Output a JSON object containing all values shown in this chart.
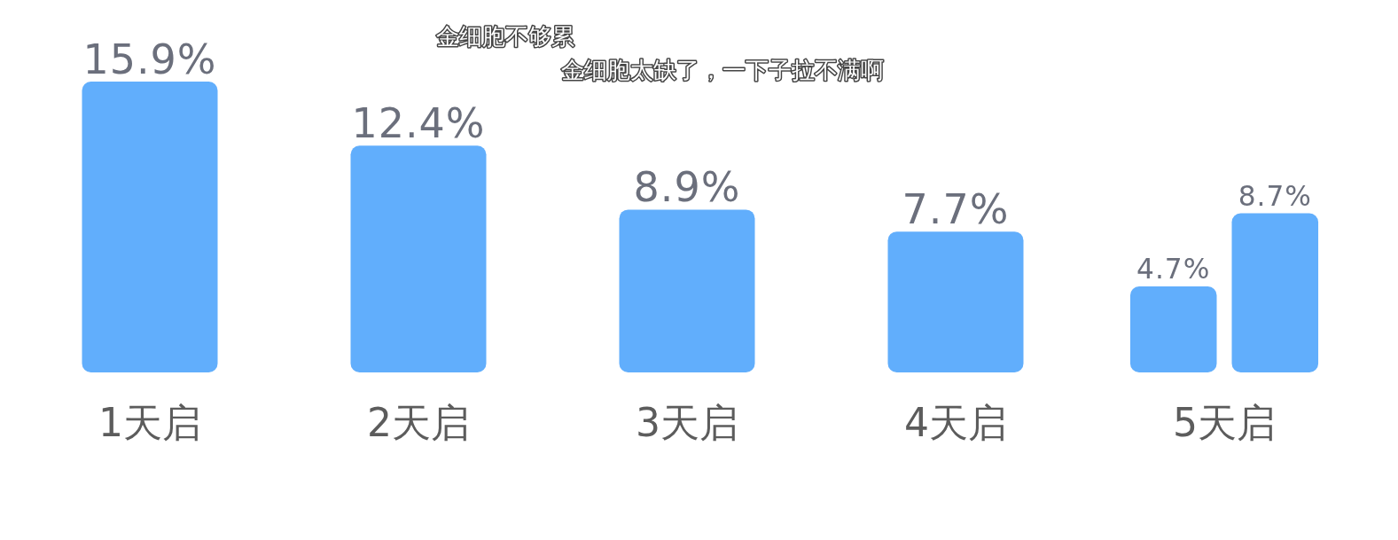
{
  "chart_data": {
    "type": "bar",
    "categories": [
      "1天启",
      "2天启",
      "3天启",
      "4天启",
      "5天启"
    ],
    "series": [
      {
        "color": "#61aefc",
        "values": [
          15.9,
          12.4,
          8.9,
          7.7,
          4.7
        ],
        "value_labels": [
          "15.9%",
          "12.4%",
          "8.9%",
          "7.7%",
          "4.7%"
        ]
      },
      {
        "color": "#61aefc",
        "values": [
          null,
          null,
          null,
          null,
          8.7
        ],
        "value_labels": [
          null,
          null,
          null,
          null,
          "8.7%"
        ]
      }
    ],
    "annotations": [
      "金细胞不够累",
      "金细胞太缺了，一下子拉不满啊"
    ]
  }
}
